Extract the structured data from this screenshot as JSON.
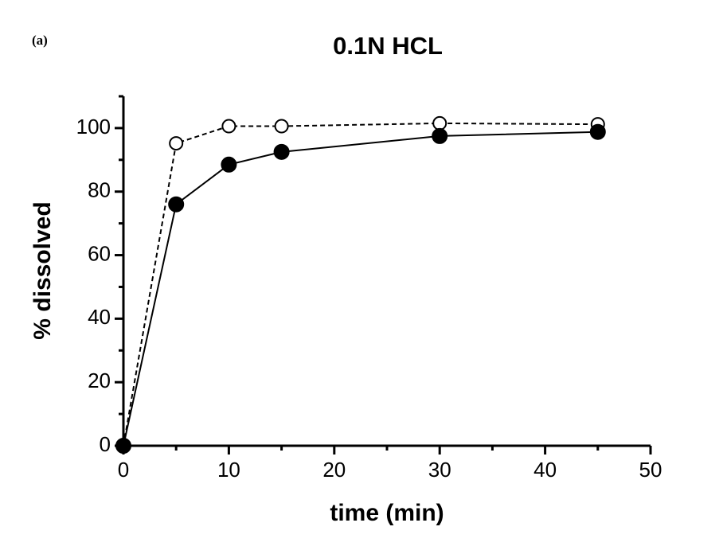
{
  "chart_data": {
    "type": "line",
    "panel_label": "(a)",
    "title": "0.1N HCL",
    "x_label": "time (min)",
    "y_label": "% dissolved",
    "xlim": [
      0,
      50
    ],
    "xticks": [
      0,
      10,
      20,
      30,
      40,
      50
    ],
    "xminorticks": [
      5,
      15,
      25,
      35,
      45
    ],
    "ylim": [
      0,
      110
    ],
    "yticks": [
      0,
      20,
      40,
      60,
      80,
      100
    ],
    "yminorticks": [
      10,
      30,
      50,
      70,
      90,
      110
    ],
    "series": [
      {
        "color": "#000000",
        "line_style": "solid",
        "marker": "filled",
        "x": [
          0,
          5,
          10,
          15,
          30,
          45
        ],
        "values": [
          0,
          76,
          88.5,
          92.5,
          97.5,
          98.8
        ]
      },
      {
        "color": "#000000",
        "line_style": "dashed",
        "marker": "open",
        "x": [
          0,
          5,
          10,
          15,
          30,
          45
        ],
        "values": [
          0,
          95.2,
          100.6,
          100.6,
          101.5,
          101.2
        ]
      }
    ]
  }
}
